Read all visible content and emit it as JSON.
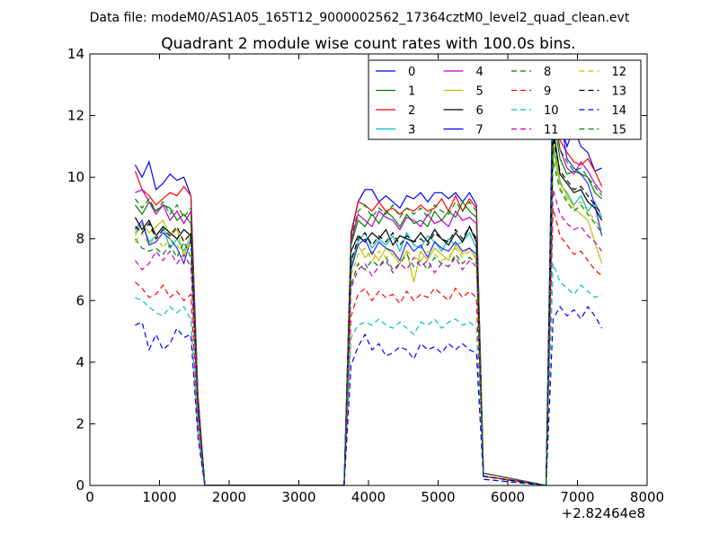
{
  "page": {
    "suptitle": "Data file: modeM0/AS1A05_165T12_9000002562_17364cztM0_level2_quad_clean.evt"
  },
  "chart_data": {
    "type": "line",
    "title": "Quadrant 2 module wise count rates with 100.0s bins.",
    "xlabel": "",
    "ylabel": "",
    "xlim": [
      0,
      8000
    ],
    "ylim": [
      0,
      14
    ],
    "x_offset_label": "+2.82464e8",
    "xticks": [
      0,
      1000,
      2000,
      3000,
      4000,
      5000,
      6000,
      7000,
      8000
    ],
    "yticks": [
      0,
      2,
      4,
      6,
      8,
      10,
      12,
      14
    ],
    "grid": false,
    "legend": {
      "position": "top-right",
      "columns": 4
    },
    "x": [
      650,
      750,
      850,
      950,
      1050,
      1150,
      1250,
      1350,
      1450,
      1550,
      1650,
      3650,
      3750,
      3850,
      3950,
      4050,
      4150,
      4250,
      4350,
      4450,
      4550,
      4650,
      4750,
      4850,
      4950,
      5050,
      5150,
      5250,
      5350,
      5450,
      5550,
      5650,
      6550,
      6650,
      6750,
      6850,
      6950,
      7050,
      7150,
      7250,
      7350
    ],
    "series": [
      {
        "name": "0",
        "color": "#0000ff",
        "dash": "solid",
        "values": [
          10.4,
          10.0,
          10.5,
          9.6,
          9.8,
          10.1,
          9.9,
          10.0,
          9.4,
          3.0,
          0,
          0,
          8.2,
          9.2,
          9.6,
          9.6,
          9.2,
          9.4,
          9.2,
          9.0,
          9.4,
          9.3,
          9.5,
          9.2,
          9.5,
          9.5,
          9.3,
          9.5,
          9.2,
          9.5,
          9.1,
          0.4,
          0,
          12.7,
          11.8,
          11.0,
          11.6,
          11.0,
          10.8,
          10.2,
          10.3
        ]
      },
      {
        "name": "1",
        "color": "#008000",
        "dash": "solid",
        "values": [
          9.1,
          8.8,
          9.2,
          8.9,
          9.1,
          9.0,
          8.6,
          8.8,
          8.5,
          2.8,
          0,
          0,
          7.8,
          8.6,
          8.4,
          8.8,
          8.5,
          8.9,
          8.7,
          8.4,
          8.8,
          8.5,
          8.6,
          8.4,
          8.9,
          8.6,
          8.9,
          8.7,
          9.2,
          8.9,
          8.7,
          0.4,
          0,
          12.0,
          10.6,
          10.1,
          10.2,
          10.1,
          10.0,
          9.5,
          9.3
        ]
      },
      {
        "name": "2",
        "color": "#ff0000",
        "dash": "solid",
        "values": [
          10.2,
          9.6,
          9.4,
          9.1,
          9.3,
          9.5,
          9.4,
          9.7,
          9.4,
          3.0,
          0,
          0,
          8.1,
          9.2,
          9.1,
          8.9,
          9.2,
          8.9,
          9.0,
          8.8,
          9.0,
          8.9,
          9.1,
          8.9,
          9.0,
          9.3,
          8.9,
          9.4,
          8.9,
          9.3,
          9.0,
          0.4,
          0,
          13.1,
          11.2,
          10.8,
          10.5,
          10.4,
          10.6,
          10.2,
          9.7
        ]
      },
      {
        "name": "3",
        "color": "#00bfbf",
        "dash": "solid",
        "values": [
          8.2,
          8.5,
          7.9,
          8.1,
          8.4,
          7.7,
          8.0,
          7.6,
          8.1,
          2.6,
          0,
          0,
          7.2,
          7.9,
          8.2,
          7.7,
          8.0,
          7.8,
          8.1,
          7.6,
          8.2,
          7.8,
          7.7,
          8.1,
          7.9,
          7.6,
          8.0,
          7.8,
          7.9,
          8.2,
          7.7,
          0.3,
          0,
          11.0,
          9.8,
          9.5,
          9.1,
          9.4,
          8.9,
          9.2,
          8.7
        ]
      },
      {
        "name": "4",
        "color": "#bf00bf",
        "dash": "solid",
        "values": [
          9.5,
          9.6,
          9.2,
          8.8,
          9.1,
          8.6,
          8.9,
          8.5,
          8.9,
          2.9,
          0,
          0,
          7.9,
          8.8,
          8.6,
          8.4,
          8.9,
          8.7,
          8.6,
          8.3,
          8.7,
          8.6,
          8.4,
          8.8,
          8.5,
          8.6,
          8.4,
          8.9,
          8.6,
          8.7,
          8.5,
          0.4,
          0,
          12.4,
          10.9,
          10.3,
          10.1,
          10.5,
          10.2,
          9.8,
          9.5
        ]
      },
      {
        "name": "5",
        "color": "#bfbf00",
        "dash": "solid",
        "values": [
          8.1,
          8.5,
          8.2,
          8.4,
          8.6,
          8.1,
          8.3,
          7.4,
          8.2,
          2.7,
          0,
          0,
          7.1,
          7.8,
          7.4,
          7.6,
          7.3,
          7.7,
          7.5,
          7.2,
          7.6,
          6.6,
          7.6,
          7.3,
          7.7,
          7.5,
          7.3,
          7.8,
          7.5,
          7.7,
          7.3,
          0.3,
          0,
          11.2,
          9.9,
          9.4,
          9.0,
          8.8,
          8.6,
          7.9,
          7.2
        ]
      },
      {
        "name": "6",
        "color": "#000000",
        "dash": "solid",
        "values": [
          8.7,
          8.3,
          8.6,
          8.1,
          8.4,
          8.2,
          8.0,
          8.3,
          8.1,
          2.7,
          0,
          0,
          7.6,
          8.1,
          7.9,
          8.2,
          8.0,
          8.3,
          7.8,
          8.1,
          8.0,
          7.9,
          8.2,
          7.9,
          8.3,
          8.0,
          7.8,
          8.2,
          7.9,
          8.4,
          7.9,
          0.3,
          0,
          11.6,
          10.1,
          9.8,
          9.5,
          9.6,
          9.2,
          9.0,
          8.6
        ]
      },
      {
        "name": "7",
        "color": "#0000ff",
        "dash": "solid",
        "values": [
          8.3,
          8.6,
          7.8,
          7.9,
          8.2,
          8.0,
          7.7,
          7.2,
          8.0,
          2.6,
          0,
          0,
          7.0,
          7.8,
          8.0,
          7.5,
          7.9,
          7.7,
          7.6,
          7.3,
          7.9,
          7.6,
          7.8,
          7.4,
          7.9,
          7.7,
          7.6,
          7.9,
          7.6,
          7.7,
          7.5,
          0.3,
          0,
          13.8,
          12.0,
          10.6,
          10.3,
          10.1,
          9.8,
          9.1,
          8.1
        ]
      },
      {
        "name": "8",
        "color": "#008000",
        "dash": "dashed",
        "values": [
          8.0,
          7.7,
          7.6,
          7.7,
          7.5,
          7.8,
          7.4,
          7.9,
          7.4,
          2.5,
          0,
          0,
          6.5,
          7.2,
          7.0,
          7.3,
          7.1,
          7.4,
          7.0,
          7.2,
          7.5,
          7.1,
          7.3,
          7.0,
          7.4,
          7.2,
          7.1,
          7.5,
          7.2,
          7.4,
          7.2,
          0.3,
          0,
          10.5,
          9.6,
          9.2,
          8.9,
          9.1,
          8.8,
          8.5,
          8.2
        ]
      },
      {
        "name": "9",
        "color": "#ff0000",
        "dash": "dashed",
        "values": [
          6.6,
          6.4,
          6.1,
          6.2,
          6.5,
          6.1,
          6.3,
          6.0,
          6.2,
          2.1,
          0,
          0,
          5.5,
          6.2,
          6.4,
          6.0,
          6.3,
          6.1,
          6.2,
          5.9,
          6.3,
          6.0,
          6.2,
          6.1,
          6.4,
          6.2,
          6.0,
          6.4,
          6.1,
          6.3,
          6.1,
          0.3,
          0,
          9.0,
          8.1,
          7.8,
          7.5,
          7.6,
          7.3,
          7.0,
          6.8
        ]
      },
      {
        "name": "10",
        "color": "#00bfbf",
        "dash": "dashed",
        "values": [
          6.1,
          6.0,
          5.8,
          5.6,
          5.5,
          5.8,
          5.6,
          5.8,
          5.4,
          1.8,
          0,
          0,
          4.8,
          5.2,
          5.3,
          5.2,
          5.4,
          5.2,
          5.1,
          5.3,
          5.1,
          4.9,
          5.3,
          5.2,
          5.4,
          5.1,
          5.3,
          5.4,
          5.2,
          5.3,
          5.1,
          0.2,
          0,
          7.2,
          6.6,
          6.4,
          6.2,
          6.5,
          6.3,
          6.1,
          6.2
        ]
      },
      {
        "name": "11",
        "color": "#bf00bf",
        "dash": "dashed",
        "values": [
          7.3,
          7.0,
          7.2,
          7.6,
          7.3,
          7.6,
          7.2,
          7.5,
          7.1,
          2.4,
          0,
          0,
          6.4,
          7.0,
          7.2,
          6.8,
          7.1,
          7.3,
          6.9,
          7.2,
          7.0,
          7.4,
          7.1,
          7.3,
          6.9,
          7.2,
          7.1,
          7.4,
          7.0,
          7.3,
          7.1,
          0.3,
          0,
          9.6,
          8.8,
          8.5,
          8.3,
          8.4,
          8.1,
          7.9,
          7.6
        ]
      },
      {
        "name": "12",
        "color": "#bfbf00",
        "dash": "dashed",
        "values": [
          7.9,
          8.2,
          7.8,
          8.1,
          7.7,
          8.0,
          7.8,
          7.5,
          7.9,
          2.6,
          0,
          0,
          6.8,
          7.5,
          7.7,
          7.3,
          7.6,
          7.4,
          7.5,
          7.2,
          7.6,
          7.4,
          7.3,
          7.6,
          7.5,
          7.3,
          7.4,
          7.7,
          7.4,
          7.6,
          7.4,
          0.3,
          0,
          10.8,
          9.7,
          9.3,
          9.1,
          9.2,
          8.9,
          8.6,
          8.3
        ]
      },
      {
        "name": "13",
        "color": "#000000",
        "dash": "dashed",
        "values": [
          8.4,
          8.2,
          8.5,
          8.0,
          8.3,
          8.1,
          8.4,
          7.9,
          8.2,
          2.7,
          0,
          0,
          7.3,
          8.0,
          8.2,
          7.8,
          8.1,
          7.9,
          8.2,
          7.8,
          8.1,
          7.9,
          8.0,
          7.8,
          8.2,
          8.0,
          7.9,
          8.3,
          8.0,
          8.4,
          8.0,
          0.3,
          0,
          11.3,
          10.2,
          9.9,
          9.6,
          9.7,
          9.4,
          9.1,
          8.8
        ]
      },
      {
        "name": "14",
        "color": "#0000ff",
        "dash": "dashed",
        "values": [
          5.2,
          5.3,
          4.4,
          4.9,
          4.4,
          4.6,
          5.1,
          4.8,
          4.9,
          1.6,
          0,
          0,
          3.9,
          4.5,
          4.9,
          4.4,
          4.6,
          4.2,
          4.3,
          4.5,
          4.4,
          4.1,
          4.6,
          4.4,
          4.5,
          4.3,
          4.6,
          4.4,
          4.6,
          4.4,
          4.3,
          0.2,
          0,
          5.4,
          5.8,
          5.5,
          5.7,
          5.4,
          5.8,
          5.5,
          5.1
        ]
      },
      {
        "name": "15",
        "color": "#008000",
        "dash": "dashed",
        "values": [
          9.3,
          9.0,
          9.3,
          8.9,
          9.2,
          8.8,
          9.1,
          8.7,
          9.0,
          2.9,
          0,
          0,
          8.0,
          8.9,
          9.1,
          8.7,
          9.0,
          8.8,
          9.1,
          8.7,
          9.0,
          8.8,
          9.0,
          8.7,
          9.1,
          8.9,
          8.8,
          9.2,
          8.9,
          9.2,
          8.9,
          0.4,
          0,
          12.3,
          10.9,
          10.5,
          10.2,
          10.3,
          10.0,
          9.7,
          9.4
        ]
      }
    ]
  }
}
